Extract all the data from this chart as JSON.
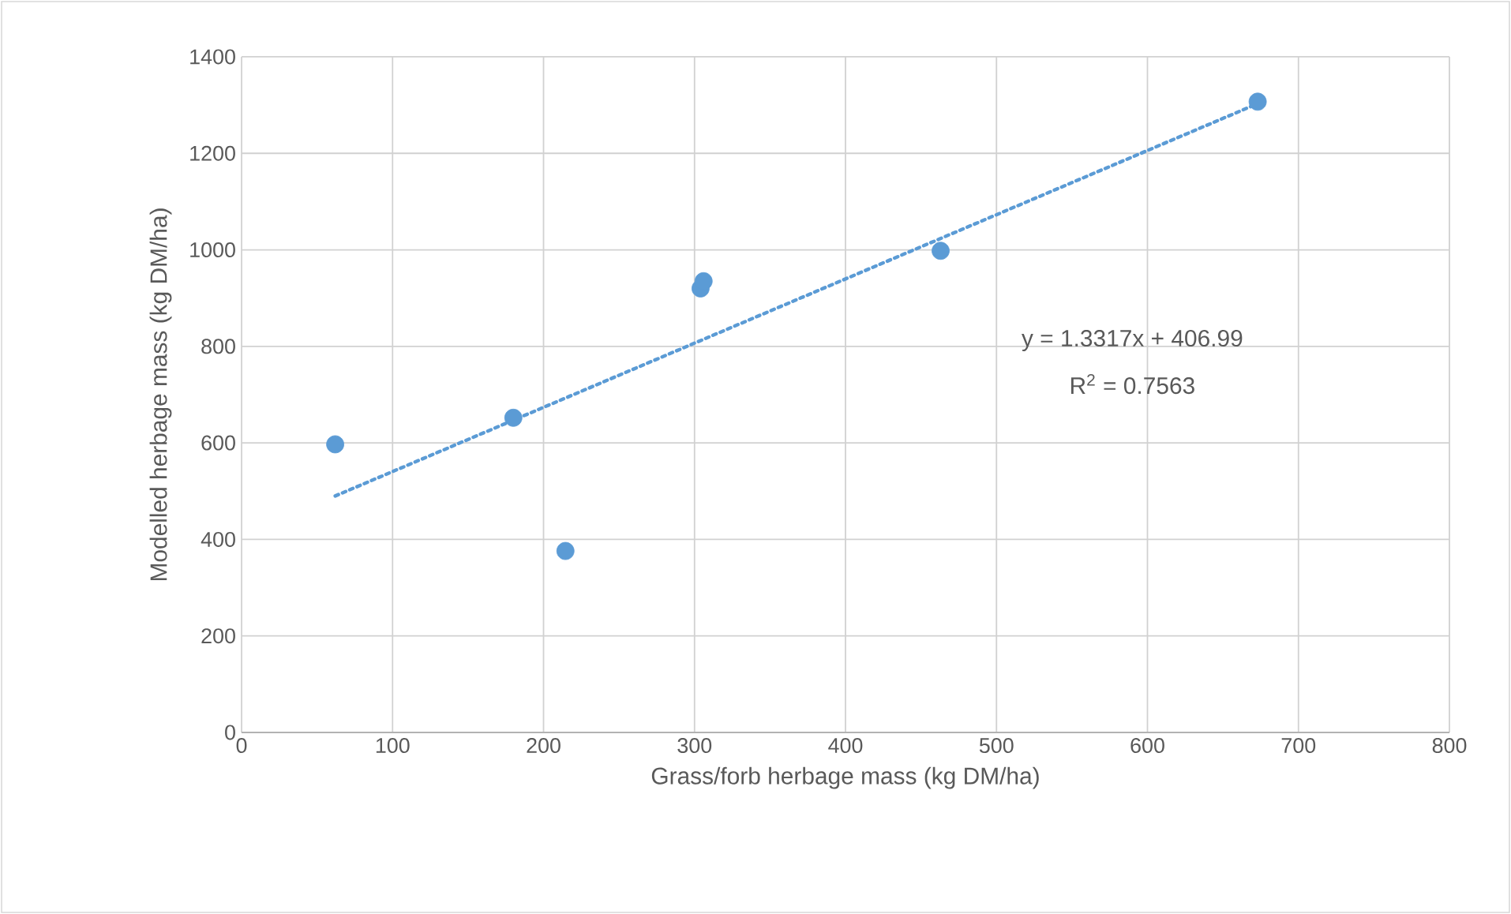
{
  "chart_data": {
    "type": "scatter",
    "xlabel": "Grass/forb herbage mass (kg DM/ha)",
    "ylabel": "Modelled  herbage mass (kg DM/ha)",
    "xlim": [
      0,
      800
    ],
    "xticks": [
      0,
      100,
      200,
      300,
      400,
      500,
      600,
      700,
      800
    ],
    "ylim": [
      0,
      1400
    ],
    "yticks": [
      0,
      200,
      400,
      600,
      800,
      1000,
      1200,
      1400
    ],
    "grid": true,
    "series": [
      {
        "marker": "circle",
        "color": "#5b9bd5",
        "x": [
          62,
          180,
          214.5,
          304,
          306,
          463,
          673
        ],
        "values": [
          597,
          652,
          376,
          920,
          935,
          998,
          1307
        ]
      },
      {
        "type": "line",
        "line_style": "dotted",
        "marker": "none",
        "color": "#5b9bd5",
        "x": [
          62,
          673
        ],
        "values": [
          490,
          1303
        ]
      }
    ],
    "annotations": [
      "y = 1.3317x + 406.99",
      "R$^{2}$ = 0.7563"
    ]
  }
}
